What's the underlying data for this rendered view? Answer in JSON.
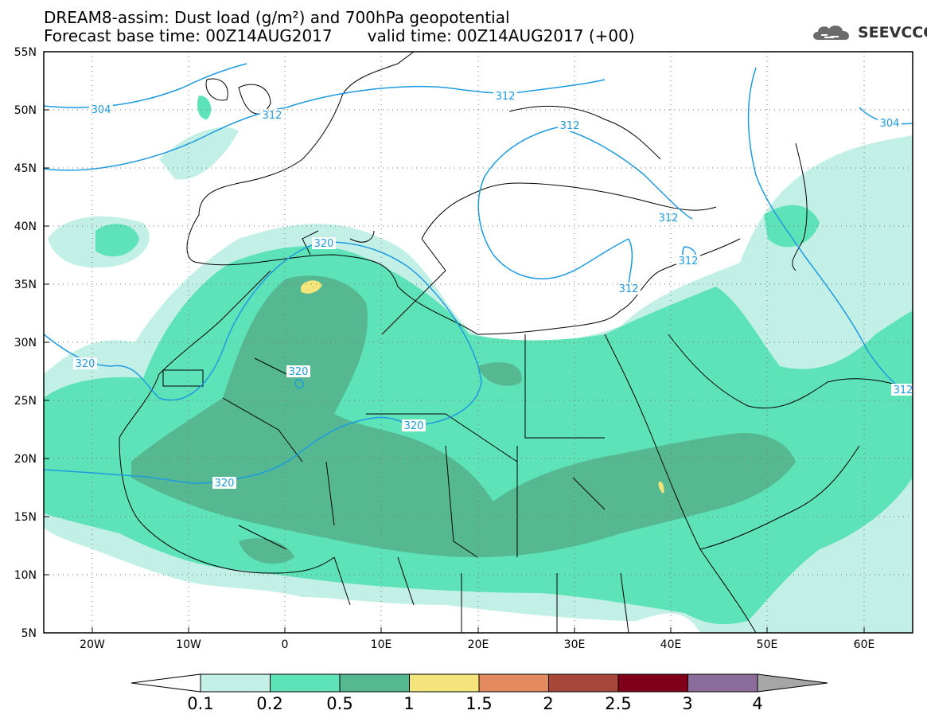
{
  "header": {
    "line1": "DREAM8-assim: Dust load (g/m²) and 700hPa geopotential",
    "line2_base": "Forecast base time: 00Z14AUG2017",
    "line2_valid": "valid time: 00Z14AUG2017 (+00)"
  },
  "logo": {
    "text": "SEEVCCC",
    "icon": "cloud-icon"
  },
  "axes": {
    "lat_labels": [
      "55N",
      "50N",
      "45N",
      "40N",
      "35N",
      "30N",
      "25N",
      "20N",
      "15N",
      "10N",
      "5N"
    ],
    "lon_labels": [
      "20W",
      "10W",
      "0",
      "10E",
      "20E",
      "30E",
      "40E",
      "50E",
      "60E"
    ]
  },
  "contours": {
    "labels": [
      "304",
      "312",
      "312",
      "312",
      "312",
      "312",
      "304",
      "320",
      "320",
      "320",
      "320",
      "320",
      "312",
      "312"
    ]
  },
  "legend": {
    "colors": [
      "#c2f0e6",
      "#5ee2b8",
      "#55b891",
      "#f3e47b",
      "#e48a5f",
      "#a7473a",
      "#800019",
      "#8b6c9a"
    ],
    "labels": [
      "0.1",
      "0.2",
      "0.5",
      "1",
      "1.5",
      "2",
      "2.5",
      "3",
      "4"
    ],
    "underflow_color": "#ffffff",
    "overflow_color": "#a6a6a6"
  },
  "colors": {
    "contour": "#1e9be0",
    "coast": "#000000"
  }
}
